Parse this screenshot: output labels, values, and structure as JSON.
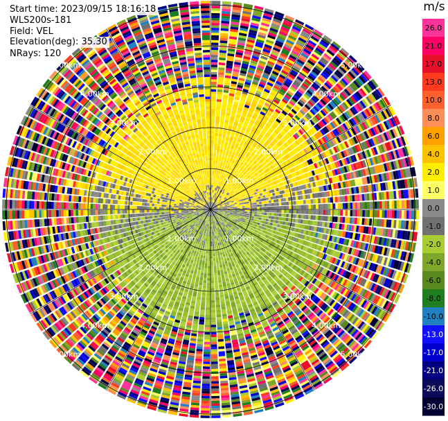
{
  "header": {
    "start_time": "Start time: 2023/09/15 18:16:18",
    "instrument": "WLS200s-181",
    "field": "Field: VEL",
    "elevation": "Elevation(deg): 35.30",
    "nrays": "NRays: 120"
  },
  "chart_data": {
    "type": "heatmap",
    "projection": "polar-ppi",
    "field": "VEL",
    "units": "m/s",
    "nrays": 120,
    "range_rings_km": [
      1,
      2,
      3,
      4,
      5
    ],
    "range_ring_labels": [
      "1.00km",
      "2.00km",
      "3.00km",
      "4.00km",
      "5.00km"
    ],
    "spokes_deg": [
      0,
      30,
      60,
      90,
      120,
      150,
      180,
      210,
      240,
      270,
      300,
      330
    ],
    "max_range_km": 5.1,
    "pattern": {
      "clear_air_range_km": 3.0,
      "southwest_to_northeast_wind": true,
      "noise_beyond_km": 3.2
    },
    "colorbar": {
      "ticks": [
        "26.0",
        "21.0",
        "17.0",
        "13.0",
        "10.0",
        "8.0",
        "6.0",
        "4.0",
        "2.0",
        "1.0",
        "0.0",
        "-1.0",
        "-2.0",
        "-4.0",
        "-6.0",
        "-8.0",
        "-10.0",
        "-13.0",
        "-17.0",
        "-21.0",
        "-26.0",
        "-30.0"
      ],
      "colors": [
        "#ff3399",
        "#ff0066",
        "#e8102b",
        "#ff3b1f",
        "#ff6030",
        "#ff8f5a",
        "#ffa000",
        "#ffc200",
        "#ffee00",
        "#ffff66",
        "#8a8a8a",
        "#707070",
        "#a8cc33",
        "#7fa82a",
        "#5a8a1f",
        "#1f7f1f",
        "#2080c0",
        "#1010ff",
        "#0000cc",
        "#000080",
        "#0a0a5a",
        "#000033"
      ]
    }
  }
}
